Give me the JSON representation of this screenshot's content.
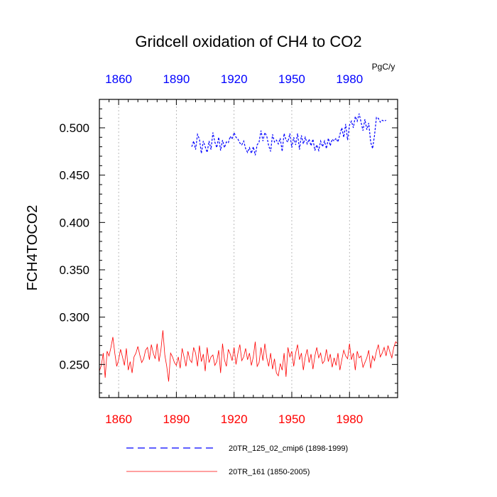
{
  "chart_data": {
    "type": "line",
    "title": "Gridcell oxidation of CH4 to CO2",
    "units": "PgC/y",
    "ylabel": "FCH4TOCO2",
    "xlabel": "",
    "xlim": [
      1850,
      2005
    ],
    "ylim": [
      0.215,
      0.53
    ],
    "yticks": [
      0.25,
      0.3,
      0.35,
      0.4,
      0.45,
      0.5
    ],
    "ytick_labels": [
      "0.250",
      "0.300",
      "0.350",
      "0.400",
      "0.450",
      "0.500"
    ],
    "xticks": [
      1860,
      1890,
      1920,
      1950,
      1980
    ],
    "xtick_labels": [
      "1860",
      "1890",
      "1920",
      "1950",
      "1980"
    ],
    "top_xtick_color": "#0000ff",
    "bottom_xtick_color": "#ff0000",
    "grid": "vertical dotted at major x ticks",
    "series": [
      {
        "name": "20TR_125_02_cmip6 (1898-1999)",
        "color": "#0000ff",
        "style": "dashed",
        "start_year": 1898,
        "values": [
          0.48,
          0.486,
          0.477,
          0.493,
          0.488,
          0.473,
          0.486,
          0.48,
          0.474,
          0.486,
          0.477,
          0.495,
          0.485,
          0.479,
          0.49,
          0.476,
          0.487,
          0.479,
          0.485,
          0.484,
          0.491,
          0.488,
          0.495,
          0.49,
          0.488,
          0.484,
          0.482,
          0.486,
          0.478,
          0.474,
          0.479,
          0.473,
          0.48,
          0.471,
          0.482,
          0.485,
          0.497,
          0.486,
          0.495,
          0.491,
          0.481,
          0.475,
          0.493,
          0.485,
          0.487,
          0.483,
          0.489,
          0.475,
          0.494,
          0.487,
          0.485,
          0.494,
          0.479,
          0.49,
          0.482,
          0.494,
          0.477,
          0.492,
          0.483,
          0.49,
          0.483,
          0.488,
          0.481,
          0.488,
          0.476,
          0.482,
          0.476,
          0.486,
          0.48,
          0.486,
          0.478,
          0.489,
          0.481,
          0.488,
          0.486,
          0.489,
          0.485,
          0.493,
          0.5,
          0.49,
          0.504,
          0.487,
          0.503,
          0.507,
          0.5,
          0.512,
          0.507,
          0.515,
          0.506,
          0.497,
          0.509,
          0.498,
          0.505,
          0.485,
          0.478,
          0.492,
          0.511,
          0.51,
          0.506,
          0.508,
          0.507,
          0.508
        ]
      },
      {
        "name": "20TR_161 (1850-2005)",
        "color": "#ff0000",
        "style": "solid",
        "start_year": 1850,
        "values": [
          0.243,
          0.249,
          0.262,
          0.236,
          0.264,
          0.259,
          0.268,
          0.279,
          0.262,
          0.248,
          0.255,
          0.266,
          0.258,
          0.249,
          0.267,
          0.244,
          0.253,
          0.241,
          0.258,
          0.262,
          0.269,
          0.26,
          0.252,
          0.256,
          0.265,
          0.268,
          0.255,
          0.271,
          0.262,
          0.256,
          0.272,
          0.253,
          0.266,
          0.286,
          0.26,
          0.248,
          0.232,
          0.262,
          0.258,
          0.252,
          0.249,
          0.258,
          0.246,
          0.267,
          0.258,
          0.248,
          0.264,
          0.255,
          0.252,
          0.268,
          0.262,
          0.248,
          0.27,
          0.253,
          0.261,
          0.243,
          0.268,
          0.252,
          0.258,
          0.26,
          0.249,
          0.253,
          0.265,
          0.241,
          0.272,
          0.255,
          0.248,
          0.266,
          0.261,
          0.254,
          0.268,
          0.25,
          0.262,
          0.271,
          0.254,
          0.258,
          0.267,
          0.255,
          0.262,
          0.249,
          0.258,
          0.274,
          0.248,
          0.252,
          0.268,
          0.254,
          0.272,
          0.257,
          0.248,
          0.262,
          0.245,
          0.256,
          0.241,
          0.238,
          0.251,
          0.244,
          0.262,
          0.237,
          0.268,
          0.258,
          0.264,
          0.248,
          0.262,
          0.271,
          0.255,
          0.262,
          0.244,
          0.258,
          0.266,
          0.252,
          0.261,
          0.245,
          0.259,
          0.268,
          0.257,
          0.262,
          0.251,
          0.254,
          0.266,
          0.253,
          0.261,
          0.247,
          0.257,
          0.249,
          0.262,
          0.244,
          0.255,
          0.265,
          0.259,
          0.256,
          0.272,
          0.255,
          0.262,
          0.244,
          0.264,
          0.257,
          0.259,
          0.247,
          0.252,
          0.257,
          0.265,
          0.246,
          0.259,
          0.254,
          0.264,
          0.271,
          0.258,
          0.262,
          0.268,
          0.259,
          0.27,
          0.263,
          0.257,
          0.268,
          0.274,
          0.272
        ]
      }
    ],
    "legend": [
      {
        "label": "20TR_125_02_cmip6 (1898-1999)",
        "color": "#0000ff",
        "style": "dashed"
      },
      {
        "label": "20TR_161 (1850-2005)",
        "color": "#ff0000",
        "style": "solid"
      }
    ]
  }
}
